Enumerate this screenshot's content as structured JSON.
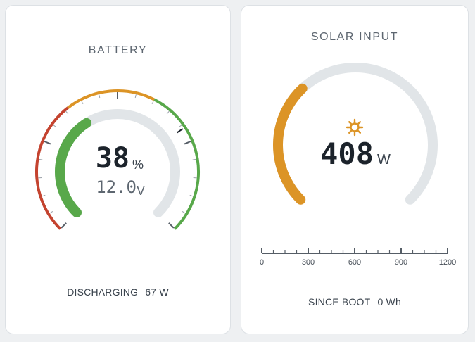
{
  "battery": {
    "title": "BATTERY",
    "soc_value": "38",
    "soc_unit": "%",
    "soc_fraction": 0.38,
    "voltage_value": "12.0",
    "voltage_unit": "V",
    "voltage_fraction": 0.71,
    "status_label": "DISCHARGING",
    "power": "67 W",
    "colors": {
      "soc": "#58a84a",
      "low": "#c4432f",
      "mid": "#dc9426",
      "high": "#58a84a",
      "track": "#e1e5e8"
    }
  },
  "solar": {
    "title": "SOLAR INPUT",
    "icon": "sun-icon",
    "power_value": "408",
    "power_unit": "W",
    "power_fraction": 0.34,
    "scale_ticks": [
      "0",
      "300",
      "600",
      "900",
      "1200"
    ],
    "footer_label": "SINCE BOOT",
    "energy": "0 Wh",
    "colors": {
      "arc": "#dc9426",
      "track": "#e1e5e8"
    }
  }
}
